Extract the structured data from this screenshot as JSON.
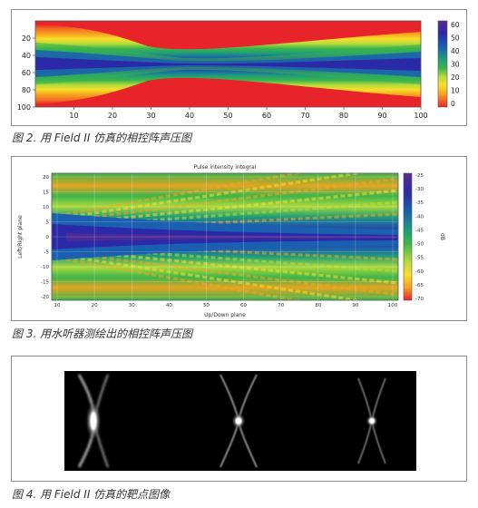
{
  "figure2": {
    "caption": "图 2. 用 Field II 仿真的相控阵声压图",
    "chart_data": {
      "type": "heatmap",
      "title": "",
      "xlabel": "",
      "ylabel": "",
      "xlim": [
        0,
        100
      ],
      "ylim": [
        100,
        0
      ],
      "x_ticks": [
        "10",
        "20",
        "30",
        "40",
        "50",
        "60",
        "70",
        "80",
        "90",
        "100"
      ],
      "y_ticks": [
        "20",
        "40",
        "60",
        "80",
        "100"
      ],
      "colorbar": {
        "range": [
          0,
          60
        ],
        "ticks": [
          "60",
          "50",
          "40",
          "30",
          "20",
          "10",
          "0"
        ]
      },
      "colors": [
        "#e8242b",
        "#f26a24",
        "#f7a21e",
        "#fadd2a",
        "#b8dc3a",
        "#3cb54b",
        "#1f9e77",
        "#1a5fb0",
        "#2a2aa8",
        "#5a2b8e"
      ],
      "grid": false
    }
  },
  "figure3": {
    "caption": "图 3. 用水听器测绘出的相控阵声压图",
    "chart_data": {
      "type": "heatmap",
      "title": "Pulse intensity integral",
      "xlabel": "Up/Down plane",
      "ylabel": "Left/Right plane",
      "colorbar_label": "dB",
      "x_ticks": [
        "10",
        "20",
        "30",
        "40",
        "50",
        "60",
        "70",
        "80",
        "90",
        "100"
      ],
      "y_ticks": [
        "20",
        "15",
        "10",
        "5",
        "0",
        "-5",
        "-10",
        "-15",
        "-20"
      ],
      "colorbar": {
        "range": [
          -70,
          -25
        ],
        "ticks": [
          "-25",
          "-30",
          "-35",
          "-40",
          "-45",
          "-50",
          "-55",
          "-60",
          "-65",
          "-70"
        ]
      },
      "grid": true
    }
  },
  "figure4": {
    "caption": "图 4. 用 Field II 仿真的靶点图像"
  }
}
